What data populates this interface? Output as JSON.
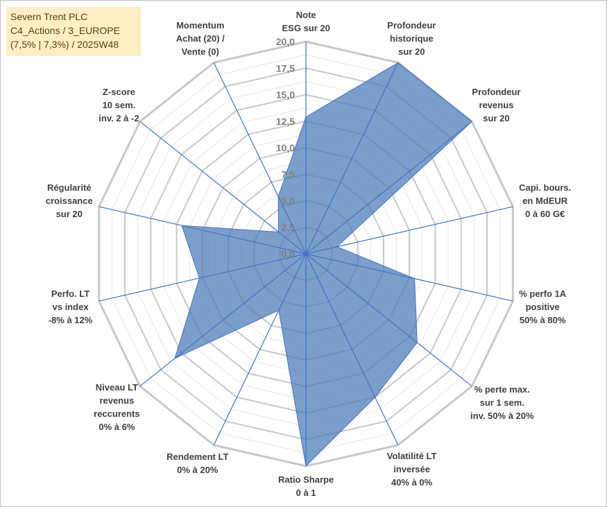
{
  "info_box": {
    "lines": [
      "Severn Trent PLC",
      "C4_Actions / 3_EUROPE",
      "(7,5% | 7,3%) / 2025W48"
    ]
  },
  "colors": {
    "fill": "#4f7fb8",
    "fill_opacity": 0.75,
    "axis_line": "#4472c4",
    "grid": "#c8c8c8",
    "minor_grid": "#e6e6e6",
    "info_background": "#fdefc3"
  },
  "chart_data": {
    "type": "radar",
    "title": "",
    "range": [
      0,
      20
    ],
    "ticks": [
      "0,0",
      "2,5",
      "5,0",
      "7,5",
      "10,0",
      "12,5",
      "15,0",
      "17,5",
      "20,0"
    ],
    "grid": true,
    "axes": [
      {
        "lines": [
          "Note",
          "ESG sur 20"
        ],
        "value": 12.9
      },
      {
        "lines": [
          "Profondeur",
          "historique",
          "sur 20"
        ],
        "value": 20.0
      },
      {
        "lines": [
          "Profondeur",
          "revenus",
          "sur 20"
        ],
        "value": 20.0
      },
      {
        "lines": [
          "Capi. bours.",
          "en MdEUR",
          "0 à 60 G€"
        ],
        "value": 3.0
      },
      {
        "lines": [
          "% perfo 1A",
          "positive",
          "50% à 80%"
        ],
        "value": 10.5
      },
      {
        "lines": [
          "% perte max.",
          "sur 1 sem.",
          "inv. 50% à 20%"
        ],
        "value": 13.4
      },
      {
        "lines": [
          "Volatilité LT",
          "inversée",
          "40% à 0%"
        ],
        "value": 15.0
      },
      {
        "lines": [
          "Ratio Sharpe",
          "0 à 1"
        ],
        "value": 20.0
      },
      {
        "lines": [
          "Rendement LT",
          "0% à 20%"
        ],
        "value": 5.9
      },
      {
        "lines": [
          "Niveau LT",
          "revenus",
          "reccurents",
          "0% à 6%"
        ],
        "value": 15.8
      },
      {
        "lines": [
          "Perfo. LT",
          "vs index",
          "-8% à 12%"
        ],
        "value": 10.3
      },
      {
        "lines": [
          "Régularité",
          "croissance",
          "sur 20"
        ],
        "value": 12.0
      },
      {
        "lines": [
          "Z-score",
          "10 sem.",
          "inv. 2 à -2"
        ],
        "value": 3.3
      },
      {
        "lines": [
          "Momentum",
          "Achat (20) /",
          "Vente (0)"
        ],
        "value": 6.0
      }
    ]
  }
}
